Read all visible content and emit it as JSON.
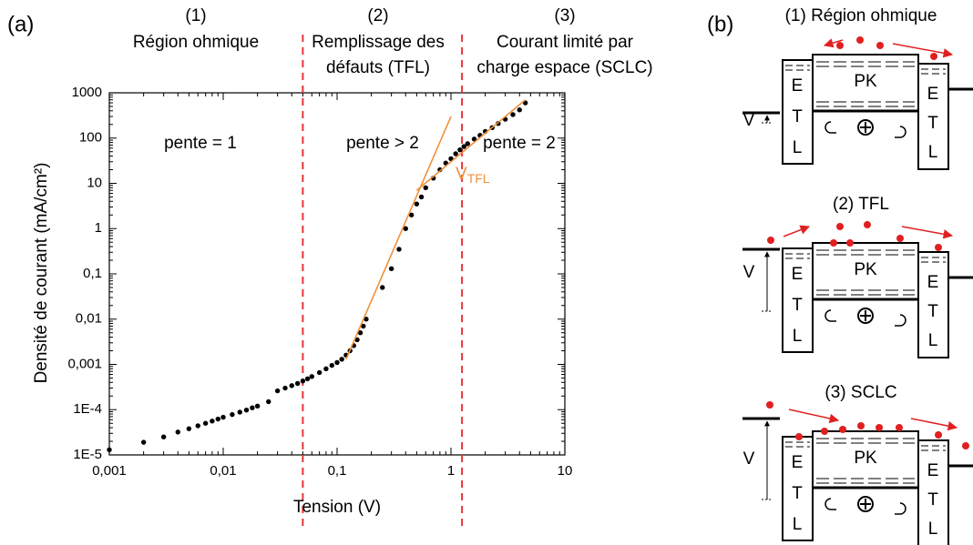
{
  "chart_data": {
    "type": "scatter",
    "panel_label": "(a)",
    "x_label": "Tension (V)",
    "y_label": "Densité de courant (mA/cm²)",
    "log_x": true,
    "log_y": true,
    "xlim": [
      0.001,
      10
    ],
    "ylim": [
      1e-05,
      1000
    ],
    "xticks": [
      {
        "value": 0.001,
        "label": "0,001"
      },
      {
        "value": 0.01,
        "label": "0,01"
      },
      {
        "value": 0.1,
        "label": "0,1"
      },
      1,
      10
    ],
    "yticks": [
      {
        "value": 1e-05,
        "label": "1E-5"
      },
      {
        "value": 0.0001,
        "label": "1E-4"
      },
      {
        "value": 0.001,
        "label": "0,001"
      },
      {
        "value": 0.01,
        "label": "0,01"
      },
      {
        "value": 0.1,
        "label": "0,1"
      },
      1,
      10,
      100,
      1000
    ],
    "series": [
      {
        "color": "#000000",
        "x": [
          0.001,
          0.002,
          0.003,
          0.004,
          0.005,
          0.006,
          0.007,
          0.008,
          0.009,
          0.01,
          0.012,
          0.014,
          0.016,
          0.018,
          0.02,
          0.025,
          0.03,
          0.035,
          0.04,
          0.045,
          0.05,
          0.055,
          0.06,
          0.07,
          0.08,
          0.09,
          0.1,
          0.11,
          0.12,
          0.13,
          0.14,
          0.15,
          0.16,
          0.17,
          0.18,
          0.25,
          0.3,
          0.35,
          0.4,
          0.45,
          0.5,
          0.55,
          0.6,
          0.7,
          0.8,
          0.9,
          1.0,
          1.1,
          1.2,
          1.3,
          1.4,
          1.6,
          1.8,
          2,
          2.3,
          2.6,
          3,
          3.5,
          4,
          4.5
        ],
        "y": [
          1.3e-05,
          1.9e-05,
          2.5e-05,
          3.2e-05,
          3.8e-05,
          4.4e-05,
          5e-05,
          5.6e-05,
          6.2e-05,
          6.8e-05,
          7.8e-05,
          8.8e-05,
          9.8e-05,
          0.00011,
          0.00012,
          0.00015,
          0.00026,
          0.0003,
          0.00034,
          0.00038,
          0.00043,
          0.00048,
          0.00054,
          0.00066,
          0.0008,
          0.00095,
          0.0011,
          0.0013,
          0.0016,
          0.002,
          0.0026,
          0.0035,
          0.005,
          0.007,
          0.01,
          0.05,
          0.13,
          0.35,
          1,
          2,
          3.5,
          5,
          8,
          13,
          20,
          28,
          35,
          45,
          55,
          65,
          75,
          95,
          115,
          140,
          170,
          210,
          260,
          330,
          420,
          600
        ]
      }
    ],
    "fits": [
      {
        "color": "#f0913a",
        "x": [
          0.12,
          1.0
        ],
        "y": [
          0.0013,
          300
        ]
      },
      {
        "color": "#f0913a",
        "x": [
          0.5,
          4.5
        ],
        "y": [
          7,
          700
        ]
      }
    ],
    "vlines": {
      "color": "#e8343a",
      "x": [
        0.05,
        1.25
      ]
    },
    "regions": [
      {
        "number": "(1)",
        "lines": [
          "Région ohmique"
        ]
      },
      {
        "number": "(2)",
        "lines": [
          "Remplissage des",
          "défauts (TFL)"
        ]
      },
      {
        "number": "(3)",
        "lines": [
          "Courant limité par",
          "charge espace (SCLC)"
        ]
      }
    ],
    "slope_labels": [
      "pente = 1",
      "pente > 2",
      "pente = 2"
    ],
    "vtfl_label": {
      "main": "V",
      "sub": "TFL"
    }
  },
  "diagram": {
    "label": "(b)",
    "etl": [
      "E",
      "T",
      "L"
    ],
    "panels": [
      {
        "title": "(1) Région ohmique",
        "v": "V",
        "pk": "PK"
      },
      {
        "title": "(2) TFL",
        "v": "V",
        "pk": "PK"
      },
      {
        "title": "(3) SCLC",
        "v": "V",
        "pk": "PK"
      }
    ]
  }
}
